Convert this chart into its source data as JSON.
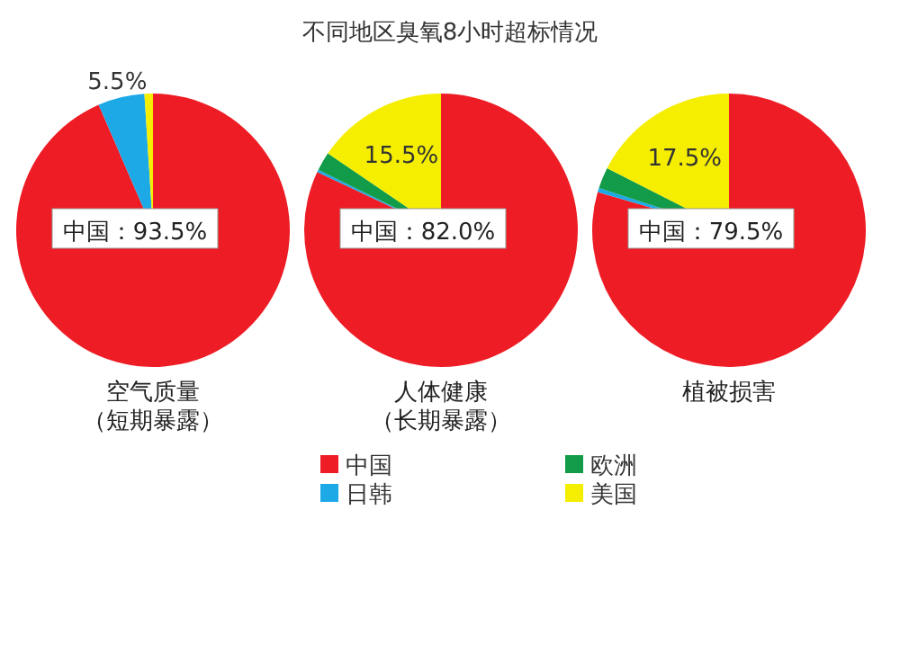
{
  "chart_data": [
    {
      "type": "pie",
      "xlabel": "空气质量（短期暴露）",
      "values": [
        93.5,
        5.5,
        0,
        1.0
      ],
      "colors": [
        "#ee1c25",
        "#1ca9e6",
        "#129b48",
        "#f5ee00"
      ],
      "value_labels": [
        "中国：93.5%",
        "5.5%",
        null,
        null
      ]
    },
    {
      "type": "pie",
      "title": "不同地区臭氧8小时超标情况",
      "xlabel": "人体健康（长期暴露）",
      "categories": [
        "中国",
        "日韩",
        "欧洲",
        "美国"
      ],
      "values": [
        82.0,
        0.3,
        2.2,
        15.5
      ],
      "colors": [
        "#ee1c25",
        "#1ca9e6",
        "#129b48",
        "#f5ee00"
      ],
      "value_labels": [
        "中国：82.0%",
        null,
        null,
        "15.5%"
      ],
      "legend": "bottom"
    },
    {
      "type": "pie",
      "xlabel": "植被损害",
      "values": [
        79.5,
        0.5,
        2.5,
        17.5
      ],
      "colors": [
        "#ee1c25",
        "#1ca9e6",
        "#129b48",
        "#f5ee00"
      ],
      "value_labels": [
        "中国：79.5%",
        null,
        null,
        "17.5%"
      ]
    }
  ]
}
